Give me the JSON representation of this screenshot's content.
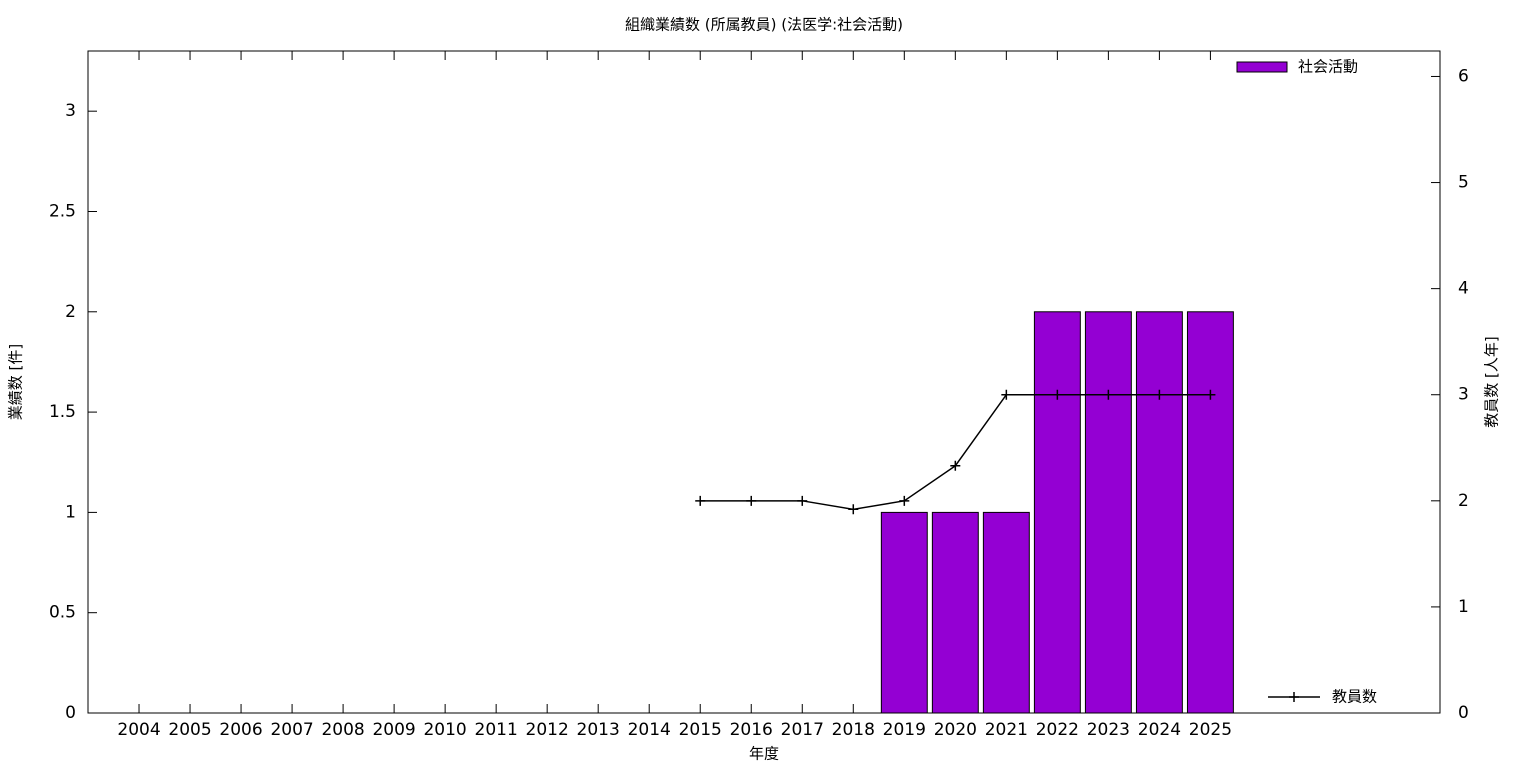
{
  "chart_data": {
    "type": "bar-line",
    "title": "組織業績数 (所属教員) (法医学:社会活動)",
    "xlabel": "年度",
    "ylabel": "業績数 [件]",
    "y2label": "教員数 [人年]",
    "x": [
      2004,
      2005,
      2006,
      2007,
      2008,
      2009,
      2010,
      2011,
      2012,
      2013,
      2014,
      2015,
      2016,
      2017,
      2018,
      2019,
      2020,
      2021,
      2022,
      2023,
      2024,
      2025
    ],
    "xlim": [
      2003,
      2029.5
    ],
    "xticks": [
      2004,
      2005,
      2006,
      2007,
      2008,
      2009,
      2010,
      2011,
      2012,
      2013,
      2014,
      2015,
      2016,
      2017,
      2018,
      2019,
      2020,
      2021,
      2022,
      2023,
      2024,
      2025
    ],
    "ylim": [
      0,
      3.3
    ],
    "yticks": [
      0,
      0.5,
      1,
      1.5,
      2,
      2.5,
      3
    ],
    "y2lim": [
      0,
      6.24
    ],
    "y2ticks": [
      0,
      1,
      2,
      3,
      4,
      5,
      6
    ],
    "series": [
      {
        "name": "社会活動",
        "type": "bar",
        "color": "#9400d3",
        "axis": "y",
        "legend": "top-right",
        "values": [
          0,
          0,
          0,
          0,
          0,
          0,
          0,
          0,
          0,
          0,
          0,
          0,
          0,
          0,
          0,
          1,
          1,
          1,
          2,
          2,
          2,
          2
        ]
      },
      {
        "name": "教員数",
        "type": "line",
        "color": "#000000",
        "axis": "y2",
        "legend": "bottom-right",
        "values": [
          null,
          null,
          null,
          null,
          null,
          null,
          null,
          null,
          null,
          null,
          null,
          2,
          2,
          2,
          1.92,
          2,
          2.33,
          3,
          3,
          3,
          3,
          3
        ]
      }
    ]
  }
}
